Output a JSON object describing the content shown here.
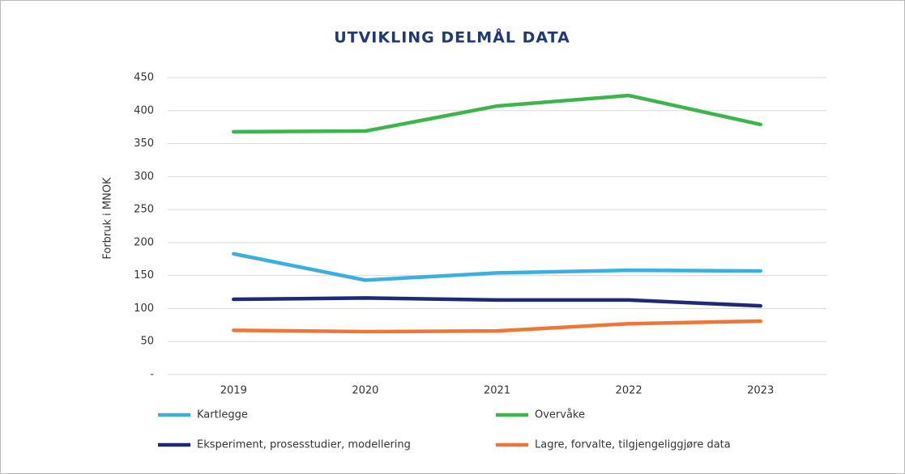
{
  "chart_data": {
    "type": "line",
    "title": "UTVIKLING DELMÅL DATA",
    "y_label": "Forbruk i MNOK",
    "categories": [
      "2019",
      "2020",
      "2021",
      "2022",
      "2023"
    ],
    "series": [
      {
        "name": "Kartlegge",
        "color": "#3aafe0",
        "values": [
          183,
          143,
          154,
          158,
          157
        ]
      },
      {
        "name": "Overvåke",
        "color": "#3cb54a",
        "values": [
          368,
          369,
          407,
          423,
          379
        ]
      },
      {
        "name": "Eksperiment, prosesstudier, modellering",
        "color": "#1e2a78",
        "values": [
          114,
          116,
          113,
          113,
          104
        ]
      },
      {
        "name": "Lagre, forvalte, tilgjengeliggjøre data",
        "color": "#ee7636",
        "values": [
          67,
          65,
          66,
          77,
          81
        ]
      }
    ],
    "ylim": [
      0,
      450
    ],
    "yticks": [
      {
        "value": 0,
        "label": "-"
      },
      50,
      100,
      150,
      200,
      250,
      300,
      350,
      400,
      450
    ],
    "grid": true,
    "legend": "bottom"
  }
}
